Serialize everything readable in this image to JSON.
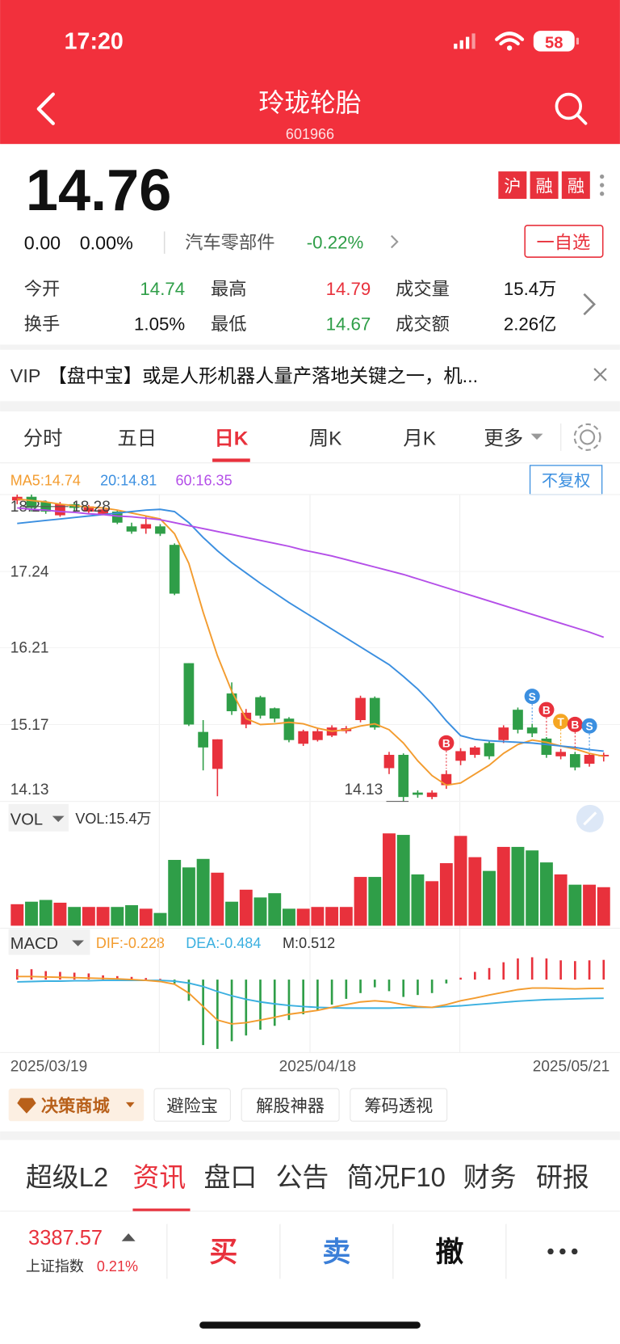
{
  "status_bar": {
    "time": "17:20",
    "battery": "58"
  },
  "header": {
    "title": "玲珑轮胎",
    "code": "601966"
  },
  "quote": {
    "price": "14.76",
    "change": "0.00",
    "change_pct": "0.00%",
    "sector": "汽车零部件",
    "sector_change": "-0.22%",
    "badges": [
      "沪",
      "融",
      "融"
    ],
    "watch_button": "一自选",
    "stats": [
      {
        "label": "今开",
        "value": "14.74",
        "color": "#2f9e48"
      },
      {
        "label": "最高",
        "value": "14.79",
        "color": "#e8313c"
      },
      {
        "label": "成交量",
        "value": "15.4万",
        "color": "#111111"
      },
      {
        "label": "换手",
        "value": "1.05%",
        "color": "#111111"
      },
      {
        "label": "最低",
        "value": "14.67",
        "color": "#2f9e48"
      },
      {
        "label": "成交额",
        "value": "2.26亿",
        "color": "#111111"
      }
    ]
  },
  "news": {
    "vip": "VIP",
    "text": "【盘中宝】或是人形机器人量产落地关键之一，机..."
  },
  "chart_tabs": [
    "分时",
    "五日",
    "日K",
    "周K",
    "月K",
    "更多"
  ],
  "chart_data": {
    "type": "candlestick",
    "ma_series": [
      {
        "label": "MA5:14.74",
        "color": "#f39c2f",
        "values": [
          18.22,
          18.2,
          18.18,
          18.15,
          18.13,
          18.11,
          18.1,
          18.07,
          18.03,
          17.99,
          17.95,
          17.75,
          17.35,
          16.69,
          16.1,
          15.62,
          15.25,
          15.17,
          15.18,
          15.2,
          15.18,
          15.12,
          15.08,
          15.1,
          15.15,
          15.18,
          15.1,
          14.92,
          14.68,
          14.48,
          14.35,
          14.38,
          14.5,
          14.62,
          14.78,
          14.9,
          14.96,
          14.93,
          14.88,
          14.84,
          14.78,
          14.74
        ]
      },
      {
        "label": "20:14.81",
        "color": "#3b8fe0",
        "values": [
          17.89,
          17.91,
          17.93,
          17.95,
          17.97,
          17.99,
          18.01,
          18.03,
          18.05,
          18.07,
          18.08,
          18.05,
          17.9,
          17.7,
          17.52,
          17.36,
          17.22,
          17.08,
          16.95,
          16.82,
          16.7,
          16.58,
          16.46,
          16.34,
          16.22,
          16.1,
          15.98,
          15.82,
          15.65,
          15.45,
          15.22,
          15.02,
          14.97,
          14.95,
          14.94,
          14.93,
          14.92,
          14.9,
          14.88,
          14.86,
          14.83,
          14.81
        ]
      },
      {
        "label": "60:16.35",
        "color": "#b44fe8",
        "values": [
          18.1,
          18.08,
          18.07,
          18.05,
          18.04,
          18.02,
          18.01,
          17.99,
          17.98,
          17.96,
          17.94,
          17.9,
          17.86,
          17.82,
          17.78,
          17.74,
          17.7,
          17.66,
          17.62,
          17.58,
          17.53,
          17.49,
          17.45,
          17.4,
          17.35,
          17.3,
          17.25,
          17.2,
          17.14,
          17.08,
          17.02,
          16.96,
          16.9,
          16.84,
          16.78,
          16.72,
          16.66,
          16.6,
          16.54,
          16.48,
          16.42,
          16.35
        ]
      }
    ],
    "adjust_button": "不复权",
    "categories": [
      "2025/03/19",
      null,
      null,
      null,
      null,
      null,
      null,
      null,
      null,
      null,
      null,
      null,
      null,
      null,
      null,
      null,
      null,
      null,
      null,
      null,
      null,
      "2025/04/18",
      null,
      null,
      null,
      null,
      null,
      null,
      null,
      null,
      null,
      null,
      null,
      null,
      null,
      null,
      null,
      null,
      null,
      null,
      null,
      "2025/05/21"
    ],
    "open": [
      18.2,
      18.25,
      18.18,
      18.0,
      18.15,
      18.05,
      18.02,
      18.05,
      17.85,
      17.82,
      17.85,
      17.6,
      16.0,
      15.07,
      14.57,
      15.59,
      15.17,
      15.54,
      15.39,
      15.25,
      14.91,
      14.96,
      15.02,
      15.08,
      15.23,
      15.53,
      14.58,
      14.76,
      14.25,
      14.19,
      14.35,
      14.68,
      14.76,
      14.92,
      14.96,
      15.37,
      15.13,
      14.98,
      14.74,
      14.77,
      14.64,
      14.74
    ],
    "close": [
      18.25,
      18.1,
      18.05,
      18.15,
      18.1,
      18.12,
      18.08,
      17.9,
      17.78,
      17.88,
      17.75,
      16.94,
      15.17,
      14.86,
      14.97,
      15.35,
      15.33,
      15.29,
      15.25,
      14.96,
      15.08,
      15.08,
      15.13,
      15.12,
      15.53,
      15.13,
      14.76,
      14.19,
      14.22,
      14.25,
      14.5,
      14.81,
      14.86,
      14.74,
      15.13,
      15.1,
      15.05,
      14.76,
      14.8,
      14.59,
      14.76,
      14.76
    ],
    "high": [
      18.28,
      18.28,
      18.2,
      18.18,
      18.17,
      18.14,
      18.1,
      18.06,
      17.9,
      17.98,
      17.88,
      17.62,
      16.0,
      15.23,
      14.97,
      15.74,
      15.38,
      15.56,
      15.4,
      15.27,
      15.1,
      15.12,
      15.16,
      15.15,
      15.56,
      15.55,
      14.8,
      14.78,
      14.28,
      14.28,
      14.55,
      14.85,
      14.88,
      14.94,
      15.16,
      15.4,
      15.18,
      15.0,
      14.84,
      14.8,
      14.78,
      14.79
    ],
    "low": [
      18.15,
      18.05,
      18.02,
      17.98,
      18.06,
      18.03,
      18.0,
      17.88,
      17.75,
      17.75,
      17.72,
      16.92,
      15.15,
      14.55,
      14.2,
      15.3,
      15.12,
      15.25,
      15.2,
      14.93,
      14.88,
      14.94,
      15.0,
      15.05,
      15.2,
      15.1,
      14.5,
      14.13,
      14.18,
      14.16,
      14.3,
      14.62,
      14.72,
      14.7,
      14.92,
      15.05,
      15.0,
      14.72,
      14.7,
      14.55,
      14.6,
      14.67
    ],
    "signals": [
      null,
      null,
      null,
      null,
      null,
      null,
      null,
      null,
      null,
      null,
      null,
      null,
      null,
      null,
      null,
      null,
      null,
      null,
      null,
      null,
      null,
      null,
      null,
      null,
      null,
      null,
      null,
      null,
      null,
      null,
      "B",
      null,
      null,
      null,
      null,
      null,
      "S",
      "B",
      "T",
      "B",
      "S",
      null
    ],
    "signal_colors": {
      "B": "#e8313c",
      "S": "#3b8fe0",
      "T": "#f5a623"
    },
    "up_color": "#e8313c",
    "down_color": "#2f9e48",
    "ylim": [
      14.13,
      18.28
    ],
    "yticks": [
      18.28,
      17.24,
      16.21,
      15.17,
      14.13
    ],
    "grid": true,
    "high_label": 18.28,
    "low_label": 14.13,
    "volume": {
      "title": "VOL",
      "label": "VOL:15.4万",
      "ylim": [
        0,
        37
      ],
      "values": [
        8.6,
        9.6,
        10.3,
        9.2,
        7.5,
        7.5,
        7.5,
        7.5,
        8.2,
        6.8,
        5.1,
        26.3,
        23.3,
        26.7,
        21.2,
        9.6,
        14.4,
        11.3,
        13.0,
        6.8,
        6.8,
        7.5,
        7.5,
        7.5,
        19.5,
        19.5,
        36.9,
        36.3,
        20.5,
        17.8,
        25.0,
        35.9,
        27.4,
        21.9,
        31.5,
        31.5,
        30.1,
        25.3,
        20.5,
        16.4,
        16.4,
        15.4
      ]
    },
    "macd": {
      "title": "MACD",
      "dif_label": "DIF:-0.228",
      "dea_label": "DEA:-0.484",
      "m_label": "M:0.512",
      "dif_color": "#f39c2f",
      "dea_color": "#3bb0e0",
      "ylim": [
        -1.85,
        0.62
      ],
      "hist": [
        0.27,
        0.27,
        0.22,
        0.2,
        0.18,
        0.16,
        0.11,
        0.09,
        0.07,
        0.04,
        0.02,
        -0.1,
        -0.55,
        -1.7,
        -1.8,
        -1.6,
        -1.45,
        -1.3,
        -1.2,
        -1.05,
        -0.9,
        -0.8,
        -0.65,
        -0.5,
        -0.35,
        -0.2,
        -0.3,
        -0.45,
        -0.4,
        -0.35,
        -0.1,
        0.05,
        0.2,
        0.3,
        0.45,
        0.55,
        0.58,
        0.55,
        0.5,
        0.48,
        0.5,
        0.512
      ],
      "dif": [
        0.08,
        0.08,
        0.07,
        0.06,
        0.05,
        0.04,
        0.03,
        0.02,
        0.0,
        -0.02,
        -0.05,
        -0.12,
        -0.35,
        -0.7,
        -1.05,
        -1.15,
        -1.12,
        -1.05,
        -0.98,
        -0.9,
        -0.85,
        -0.8,
        -0.72,
        -0.65,
        -0.58,
        -0.55,
        -0.58,
        -0.65,
        -0.7,
        -0.72,
        -0.65,
        -0.55,
        -0.48,
        -0.4,
        -0.33,
        -0.26,
        -0.22,
        -0.22,
        -0.23,
        -0.24,
        -0.23,
        -0.228
      ],
      "dea": [
        -0.06,
        -0.05,
        -0.04,
        -0.04,
        -0.03,
        -0.03,
        -0.02,
        -0.02,
        -0.02,
        -0.02,
        -0.02,
        -0.04,
        -0.09,
        -0.18,
        -0.31,
        -0.42,
        -0.51,
        -0.58,
        -0.63,
        -0.67,
        -0.7,
        -0.72,
        -0.73,
        -0.74,
        -0.74,
        -0.74,
        -0.74,
        -0.73,
        -0.72,
        -0.72,
        -0.7,
        -0.68,
        -0.65,
        -0.62,
        -0.59,
        -0.56,
        -0.54,
        -0.52,
        -0.51,
        -0.5,
        -0.49,
        -0.484
      ]
    }
  },
  "tools": [
    "决策商城",
    "避险宝",
    "解股神器",
    "筹码透视"
  ],
  "info_tabs": [
    "超级L2",
    "资讯",
    "盘口",
    "公告",
    "简况F10",
    "财务",
    "研报"
  ],
  "bottom_bar": {
    "index_value": "3387.57",
    "index_name": "上证指数",
    "index_change": "0.21%",
    "buttons": [
      "买",
      "卖",
      "撤"
    ]
  }
}
